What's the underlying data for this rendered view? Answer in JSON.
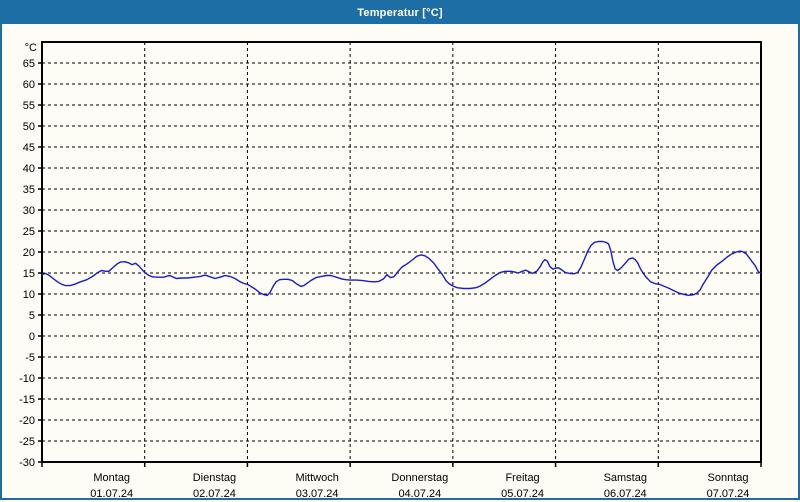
{
  "window": {
    "title": "Temperatur [°C]"
  },
  "colors": {
    "titlebar": "#1e6ea6",
    "frame": "#1e6ea6",
    "panel_background": "#fdfdf5",
    "line": "#1a1acc",
    "grid": "#000000",
    "text": "#000000"
  },
  "chart_data": {
    "type": "line",
    "title": "Temperatur [°C]",
    "xlabel": "",
    "ylabel": "°C",
    "ylim": [
      -30,
      70
    ],
    "y_ticks": [
      65,
      60,
      55,
      50,
      45,
      40,
      35,
      30,
      25,
      20,
      15,
      10,
      5,
      0,
      -5,
      -10,
      -15,
      -20,
      -25,
      -30
    ],
    "x_hours_range": [
      0,
      168
    ],
    "grid": "dashed",
    "legend": "none",
    "days": [
      {
        "name": "Montag",
        "date": "01.07.24"
      },
      {
        "name": "Dienstag",
        "date": "02.07.24"
      },
      {
        "name": "Mittwoch",
        "date": "03.07.24"
      },
      {
        "name": "Donnerstag",
        "date": "04.07.24"
      },
      {
        "name": "Freitag",
        "date": "05.07.24"
      },
      {
        "name": "Samstag",
        "date": "06.07.24"
      },
      {
        "name": "Sonntag",
        "date": "07.07.24"
      }
    ],
    "series": [
      {
        "name": "Temperatur",
        "unit": "°C",
        "color": "#1a1acc",
        "points": [
          [
            0,
            14.6
          ],
          [
            0.8,
            14.9
          ],
          [
            1.6,
            14.5
          ],
          [
            2.6,
            13.7
          ],
          [
            3.6,
            12.9
          ],
          [
            4.6,
            12.3
          ],
          [
            5.5,
            12.0
          ],
          [
            6.6,
            12.0
          ],
          [
            7.6,
            12.3
          ],
          [
            9,
            12.9
          ],
          [
            10.5,
            13.4
          ],
          [
            12,
            14.3
          ],
          [
            13,
            15.1
          ],
          [
            13.9,
            15.6
          ],
          [
            14.9,
            15.4
          ],
          [
            15.6,
            15.4
          ],
          [
            16.6,
            16.3
          ],
          [
            17.6,
            17.2
          ],
          [
            18.3,
            17.6
          ],
          [
            19.3,
            17.7
          ],
          [
            20.3,
            17.4
          ],
          [
            21,
            17.0
          ],
          [
            21.9,
            17.3
          ],
          [
            22.7,
            16.6
          ],
          [
            23.4,
            15.8
          ],
          [
            24,
            15.1
          ],
          [
            25,
            14.4
          ],
          [
            25.8,
            14.1
          ],
          [
            27,
            14.0
          ],
          [
            28.5,
            14.0
          ],
          [
            29.4,
            14.3
          ],
          [
            29.9,
            14.4
          ],
          [
            30.7,
            14.0
          ],
          [
            31.4,
            13.7
          ],
          [
            32.6,
            13.8
          ],
          [
            34,
            13.8
          ],
          [
            35.6,
            14.0
          ],
          [
            37,
            14.2
          ],
          [
            38.1,
            14.5
          ],
          [
            39.3,
            14.1
          ],
          [
            40.4,
            13.7
          ],
          [
            41.6,
            14.0
          ],
          [
            42.8,
            14.4
          ],
          [
            43.9,
            14.2
          ],
          [
            45.1,
            13.7
          ],
          [
            46.3,
            12.9
          ],
          [
            47.2,
            12.5
          ],
          [
            48,
            12.3
          ],
          [
            49,
            11.7
          ],
          [
            49.8,
            11.2
          ],
          [
            51,
            10.2
          ],
          [
            52,
            9.8
          ],
          [
            52.7,
            9.7
          ],
          [
            53.3,
            10.4
          ],
          [
            54,
            11.8
          ],
          [
            54.7,
            12.9
          ],
          [
            55.5,
            13.4
          ],
          [
            56.5,
            13.5
          ],
          [
            57.5,
            13.5
          ],
          [
            58.5,
            13.2
          ],
          [
            59.5,
            12.4
          ],
          [
            60.5,
            11.8
          ],
          [
            61.2,
            12.0
          ],
          [
            62,
            12.6
          ],
          [
            63,
            13.3
          ],
          [
            64,
            13.9
          ],
          [
            65.3,
            14.2
          ],
          [
            66.5,
            14.4
          ],
          [
            67.5,
            14.4
          ],
          [
            68.8,
            14.0
          ],
          [
            70,
            13.6
          ],
          [
            71,
            13.4
          ],
          [
            72,
            13.3
          ],
          [
            73.5,
            13.3
          ],
          [
            75,
            13.2
          ],
          [
            76.3,
            13.0
          ],
          [
            77.5,
            12.9
          ],
          [
            78.7,
            13.0
          ],
          [
            79.8,
            13.6
          ],
          [
            80.6,
            14.6
          ],
          [
            81.4,
            13.9
          ],
          [
            82.2,
            14.1
          ],
          [
            83,
            15.1
          ],
          [
            84.1,
            16.4
          ],
          [
            85.3,
            17.2
          ],
          [
            86.5,
            18.1
          ],
          [
            87.6,
            19.0
          ],
          [
            88.6,
            19.3
          ],
          [
            89.5,
            19.1
          ],
          [
            90.5,
            18.4
          ],
          [
            91.5,
            17.4
          ],
          [
            92.5,
            16.0
          ],
          [
            93.5,
            14.7
          ],
          [
            94.4,
            13.2
          ],
          [
            95.2,
            12.4
          ],
          [
            96,
            11.9
          ],
          [
            97,
            11.5
          ],
          [
            98.5,
            11.3
          ],
          [
            100,
            11.3
          ],
          [
            101.4,
            11.5
          ],
          [
            102.4,
            11.9
          ],
          [
            103.5,
            12.6
          ],
          [
            104.7,
            13.5
          ],
          [
            105.9,
            14.4
          ],
          [
            107,
            15.1
          ],
          [
            108.2,
            15.4
          ],
          [
            109.6,
            15.4
          ],
          [
            110.6,
            15.2
          ],
          [
            111.3,
            15.0
          ],
          [
            112.2,
            15.4
          ],
          [
            113,
            15.7
          ],
          [
            113.8,
            15.3
          ],
          [
            114.6,
            14.9
          ],
          [
            115.6,
            15.4
          ],
          [
            116.4,
            16.5
          ],
          [
            117,
            17.6
          ],
          [
            117.5,
            18.2
          ],
          [
            118.1,
            17.8
          ],
          [
            118.7,
            16.5
          ],
          [
            119.4,
            15.9
          ],
          [
            120,
            16.2
          ],
          [
            120.8,
            16.2
          ],
          [
            121.5,
            15.7
          ],
          [
            122.3,
            15.1
          ],
          [
            123.3,
            14.9
          ],
          [
            124.4,
            14.8
          ],
          [
            125.2,
            15.2
          ],
          [
            125.9,
            16.3
          ],
          [
            126.7,
            18.2
          ],
          [
            127.5,
            20.2
          ],
          [
            128.3,
            21.6
          ],
          [
            129.1,
            22.3
          ],
          [
            130,
            22.5
          ],
          [
            131,
            22.5
          ],
          [
            131.8,
            22.3
          ],
          [
            132.4,
            21.9
          ],
          [
            132.9,
            20.3
          ],
          [
            133.4,
            17.8
          ],
          [
            133.9,
            16.0
          ],
          [
            134.5,
            15.6
          ],
          [
            135.2,
            16.1
          ],
          [
            136.1,
            17.1
          ],
          [
            137.1,
            18.3
          ],
          [
            138,
            18.6
          ],
          [
            138.6,
            18.2
          ],
          [
            139.2,
            17.4
          ],
          [
            139.9,
            15.9
          ],
          [
            141,
            14.2
          ],
          [
            142.2,
            12.9
          ],
          [
            143.4,
            12.4
          ],
          [
            144,
            12.4
          ],
          [
            145,
            12.0
          ],
          [
            146.4,
            11.4
          ],
          [
            147.6,
            10.8
          ],
          [
            148.9,
            10.2
          ],
          [
            150,
            9.9
          ],
          [
            151,
            9.7
          ],
          [
            152.2,
            9.8
          ],
          [
            153,
            10.2
          ],
          [
            153.8,
            11.0
          ],
          [
            154.4,
            12.2
          ],
          [
            155.4,
            13.8
          ],
          [
            156.5,
            15.7
          ],
          [
            157.7,
            16.9
          ],
          [
            158.9,
            17.8
          ],
          [
            160.1,
            18.8
          ],
          [
            161.1,
            19.5
          ],
          [
            162.2,
            20.0
          ],
          [
            163,
            20.2
          ],
          [
            163.7,
            20.1
          ],
          [
            164.6,
            19.5
          ],
          [
            165.3,
            18.6
          ],
          [
            166,
            17.6
          ],
          [
            166.7,
            16.7
          ],
          [
            167.2,
            15.6
          ],
          [
            167.6,
            15.1
          ],
          [
            168,
            15.0
          ]
        ]
      }
    ]
  }
}
